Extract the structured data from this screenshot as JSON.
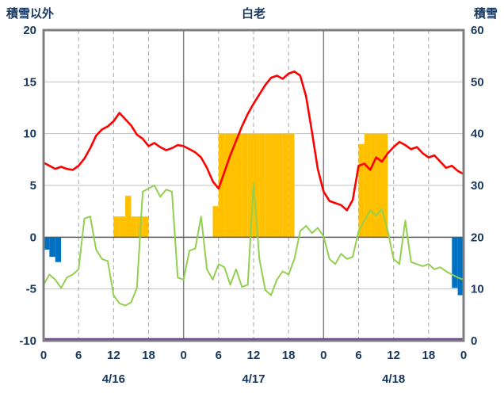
{
  "titles": {
    "left_axis": "積雪以外",
    "chart": "白老",
    "right_axis": "積雪"
  },
  "chart_data": {
    "type": "line+bar",
    "title": "白老",
    "hours_span": 72,
    "left_axis": {
      "title": "積雪以外",
      "min": -10,
      "max": 20,
      "ticks": [
        20,
        15,
        10,
        5,
        0,
        -5,
        -10
      ],
      "grid_ticks": [
        15,
        10,
        5,
        -5
      ]
    },
    "right_axis": {
      "title": "積雪",
      "min": 0,
      "max": 60,
      "ticks": [
        60,
        50,
        40,
        30,
        20,
        10,
        0
      ]
    },
    "x_axis": {
      "tick_hours": [
        0,
        6,
        12,
        18,
        24,
        30,
        36,
        42,
        48,
        54,
        60,
        66,
        72
      ],
      "tick_labels": [
        "0",
        "6",
        "12",
        "18",
        "0",
        "6",
        "12",
        "18",
        "0",
        "6",
        "12",
        "18",
        "0"
      ],
      "day_labels": [
        {
          "label": "4/16",
          "hour": 12
        },
        {
          "label": "4/17",
          "hour": 36
        },
        {
          "label": "4/18",
          "hour": 60
        }
      ]
    },
    "series": [
      {
        "name": "green-line",
        "axis": "left",
        "color": "#92D050",
        "width": 2,
        "values": [
          -4.6,
          -3.6,
          -4.1,
          -4.9,
          -3.9,
          -3.6,
          -3.1,
          1.8,
          2.0,
          -1.2,
          -2.1,
          -2.3,
          -5.6,
          -6.4,
          -6.6,
          -6.3,
          -4.9,
          4.4,
          4.7,
          5.0,
          3.9,
          4.6,
          4.4,
          -3.9,
          -4.1,
          -1.3,
          -1.1,
          2.0,
          -3.1,
          -4.1,
          -2.6,
          -2.9,
          -4.6,
          -3.1,
          -4.8,
          -4.6,
          5.2,
          -2.1,
          -5.1,
          -5.6,
          -4.1,
          -3.3,
          -3.6,
          -2.1,
          0.6,
          1.1,
          0.4,
          0.9,
          0.1,
          -2.1,
          -2.6,
          -1.6,
          -2.1,
          -1.9,
          0.6,
          1.6,
          2.6,
          2.1,
          2.7,
          0.6,
          -2.1,
          -2.6,
          1.6,
          -2.4,
          -2.6,
          -2.8,
          -2.6,
          -3.1,
          -2.9,
          -3.3,
          -3.6,
          -3.9,
          -4.1
        ]
      },
      {
        "name": "red-line",
        "axis": "left",
        "color": "#FF0000",
        "width": 2.6,
        "values": [
          7.2,
          6.9,
          6.6,
          6.8,
          6.6,
          6.5,
          6.9,
          7.6,
          8.6,
          9.8,
          10.4,
          10.7,
          11.2,
          12.0,
          11.4,
          10.8,
          9.9,
          9.5,
          8.8,
          9.1,
          8.7,
          8.4,
          8.6,
          8.9,
          8.8,
          8.5,
          8.2,
          7.7,
          6.7,
          5.4,
          4.7,
          6.3,
          7.9,
          9.3,
          10.7,
          11.9,
          12.9,
          13.8,
          14.7,
          15.4,
          15.6,
          15.3,
          15.8,
          16.0,
          15.6,
          13.6,
          10.2,
          6.6,
          4.4,
          3.5,
          3.3,
          3.1,
          2.6,
          3.6,
          6.9,
          7.1,
          6.5,
          7.7,
          7.3,
          8.1,
          8.7,
          9.2,
          8.9,
          8.5,
          8.7,
          8.1,
          7.7,
          7.9,
          7.3,
          6.7,
          6.9,
          6.4,
          6.1
        ]
      }
    ],
    "bars": [
      {
        "name": "orange-bars",
        "axis": "left",
        "color": "#FFC000",
        "points": [
          [
            12,
            2
          ],
          [
            13,
            2
          ],
          [
            14,
            4
          ],
          [
            15,
            2
          ],
          [
            16,
            2
          ],
          [
            17,
            2
          ],
          [
            29,
            3
          ],
          [
            30,
            10
          ],
          [
            31,
            10
          ],
          [
            32,
            10
          ],
          [
            33,
            10
          ],
          [
            34,
            10
          ],
          [
            35,
            10
          ],
          [
            36,
            10
          ],
          [
            37,
            10
          ],
          [
            38,
            10
          ],
          [
            39,
            10
          ],
          [
            40,
            10
          ],
          [
            41,
            10
          ],
          [
            42,
            10
          ],
          [
            54,
            9
          ],
          [
            55,
            10
          ],
          [
            56,
            10
          ],
          [
            57,
            10
          ],
          [
            58,
            10
          ]
        ]
      },
      {
        "name": "blue-bars",
        "axis": "left",
        "color": "#0070C0",
        "points": [
          [
            0,
            -1.2
          ],
          [
            1,
            -1.9
          ],
          [
            2,
            -2.4
          ],
          [
            70,
            -4.9
          ],
          [
            71,
            -5.6
          ]
        ]
      }
    ],
    "flat_line": {
      "name": "snow-depth-line",
      "axis": "right",
      "color": "#7030A0",
      "value": 0,
      "width": 2.5
    },
    "grid": {
      "h_color": "#BFBFBF",
      "zero_color": "#595959",
      "v_dash_color": "#A6A6A6",
      "v_solid_color": "#808080",
      "frame_color": "#7F7F7F"
    },
    "text_color": "#17375E"
  }
}
